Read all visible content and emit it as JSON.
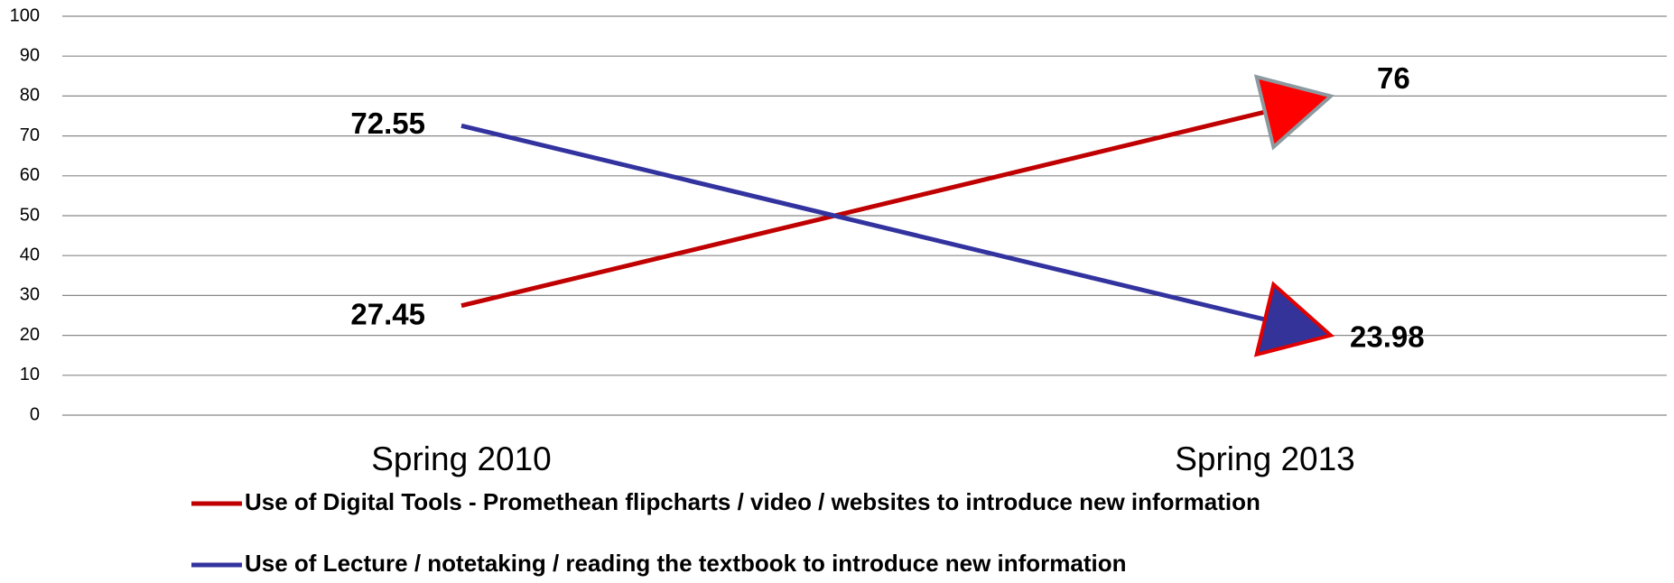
{
  "chart_data": {
    "type": "line",
    "categories": [
      "Spring 2010",
      "Spring 2013"
    ],
    "series": [
      {
        "name": "Use of Digital Tools - Promethean flipcharts / video / websites to introduce new information",
        "color": "#c00000",
        "values": [
          27.45,
          76
        ]
      },
      {
        "name": "Use of Lecture / notetaking / reading the textbook to introduce new information",
        "color": "#3333a0",
        "values": [
          72.55,
          23.98
        ]
      }
    ],
    "ylim": [
      0,
      100
    ],
    "yticks": [
      0,
      10,
      20,
      30,
      40,
      50,
      60,
      70,
      80,
      90,
      100
    ],
    "grid": true
  }
}
